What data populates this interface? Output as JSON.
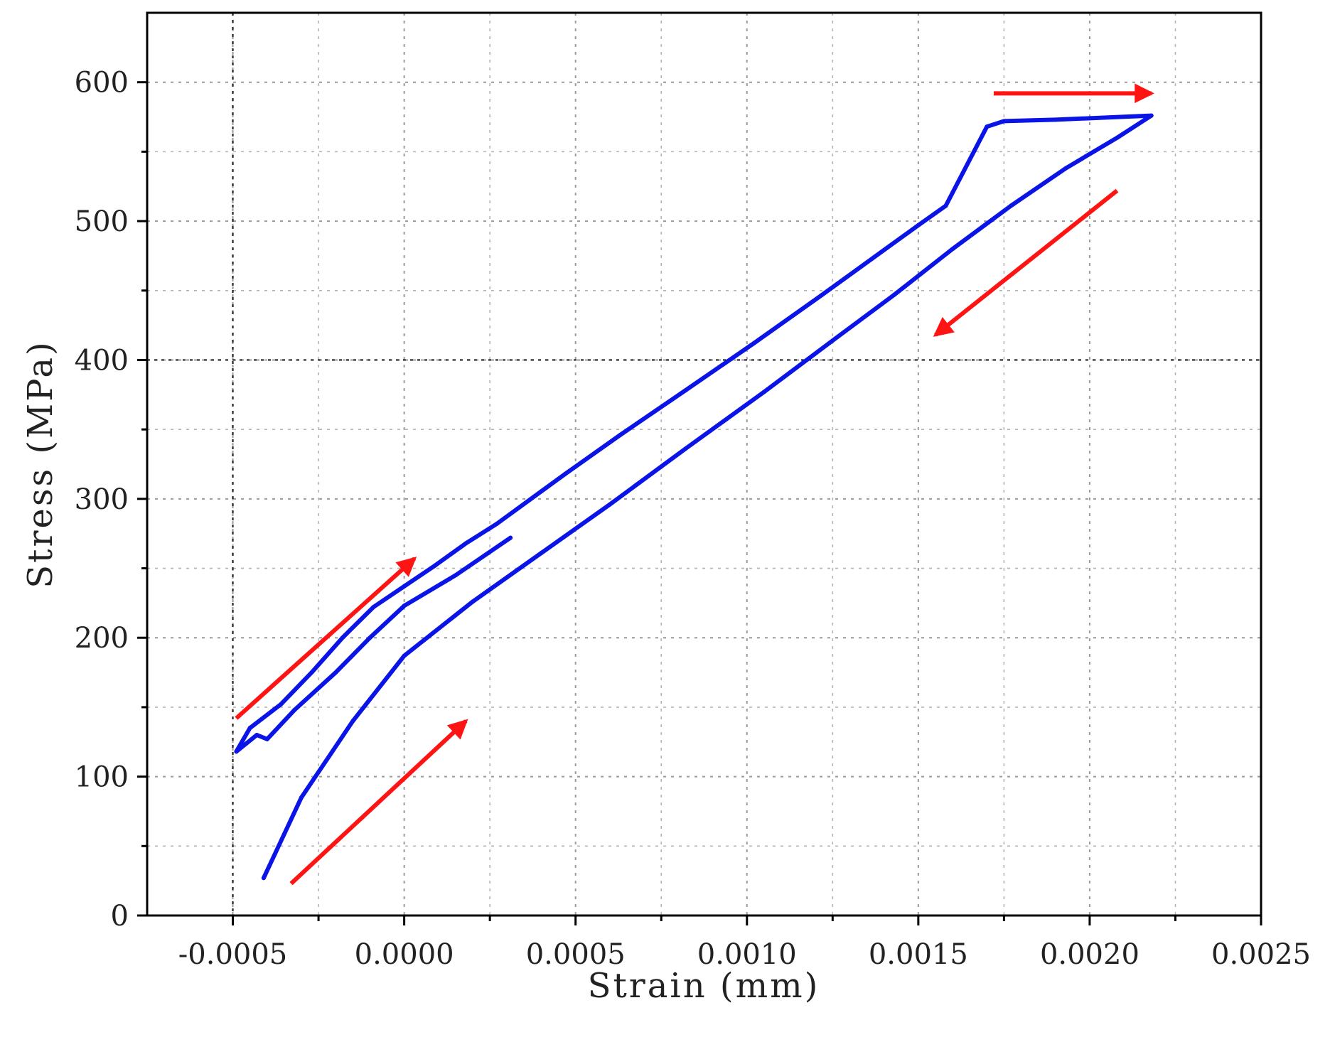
{
  "chart_data": {
    "type": "line",
    "title": "",
    "xlabel": "Strain (mm)",
    "ylabel": "Stress (MPa)",
    "xlim": [
      -0.00075,
      0.0025
    ],
    "ylim": [
      0,
      650
    ],
    "x_ticks": [
      -0.0005,
      0.0,
      0.0005,
      0.001,
      0.0015,
      0.002,
      0.0025
    ],
    "x_tick_labels": [
      "-0.0005",
      "0.0000",
      "0.0005",
      "0.0010",
      "0.0015",
      "0.0020",
      "0.0025"
    ],
    "x_minor_ticks": [
      -0.00025,
      0.00025,
      0.00075,
      0.00125,
      0.00175,
      0.00225
    ],
    "y_ticks": [
      0,
      100,
      200,
      300,
      400,
      500,
      600
    ],
    "y_tick_labels": [
      "0",
      "100",
      "200",
      "300",
      "400",
      "500",
      "600"
    ],
    "y_minor_ticks": [
      50,
      150,
      250,
      350,
      450,
      550
    ],
    "grid": true,
    "series": [
      {
        "color": "#0a14e6",
        "x": [
          0.00031,
          0.00015,
          0.0,
          -0.0001,
          -0.0002,
          -0.00032,
          -0.0004,
          -0.00043,
          -0.00049,
          -0.00045,
          -0.00036,
          -0.00027,
          -0.00018,
          -9e-05,
          0.0,
          9e-05,
          0.00018,
          0.00027,
          0.00037,
          0.00047,
          0.00063,
          0.00082,
          0.00102,
          0.00122,
          0.00141,
          0.0015,
          0.00158,
          0.0017,
          0.00175,
          0.0019,
          0.00218,
          0.00208,
          0.00193,
          0.00177,
          0.0016,
          0.00143,
          0.00125,
          0.00105,
          0.00082,
          0.0006,
          0.0004,
          0.0002,
          0.0,
          -0.00015,
          -0.0003,
          -0.00041
        ],
        "y": [
          272,
          245,
          223,
          200,
          175,
          148,
          127,
          130,
          118,
          135,
          152,
          175,
          200,
          222,
          237,
          252,
          268,
          282,
          300,
          318,
          346,
          378,
          412,
          447,
          481,
          497,
          511,
          568,
          572,
          573,
          576,
          560,
          538,
          511,
          480,
          447,
          414,
          377,
          336,
          296,
          261,
          226,
          187,
          140,
          85,
          27
        ]
      }
    ],
    "annotations": [
      {
        "type": "arrow",
        "color": "#ff1414",
        "from": [
          -0.00049,
          142
        ],
        "to": [
          3e-05,
          257
        ]
      },
      {
        "type": "arrow",
        "color": "#ff1414",
        "from": [
          -0.00033,
          23
        ],
        "to": [
          0.00018,
          140
        ]
      },
      {
        "type": "arrow",
        "color": "#ff1414",
        "from": [
          0.00208,
          522
        ],
        "to": [
          0.00155,
          418
        ]
      },
      {
        "type": "arrow",
        "color": "#ff1414",
        "from": [
          0.00172,
          592
        ],
        "to": [
          0.00218,
          592
        ]
      }
    ]
  }
}
